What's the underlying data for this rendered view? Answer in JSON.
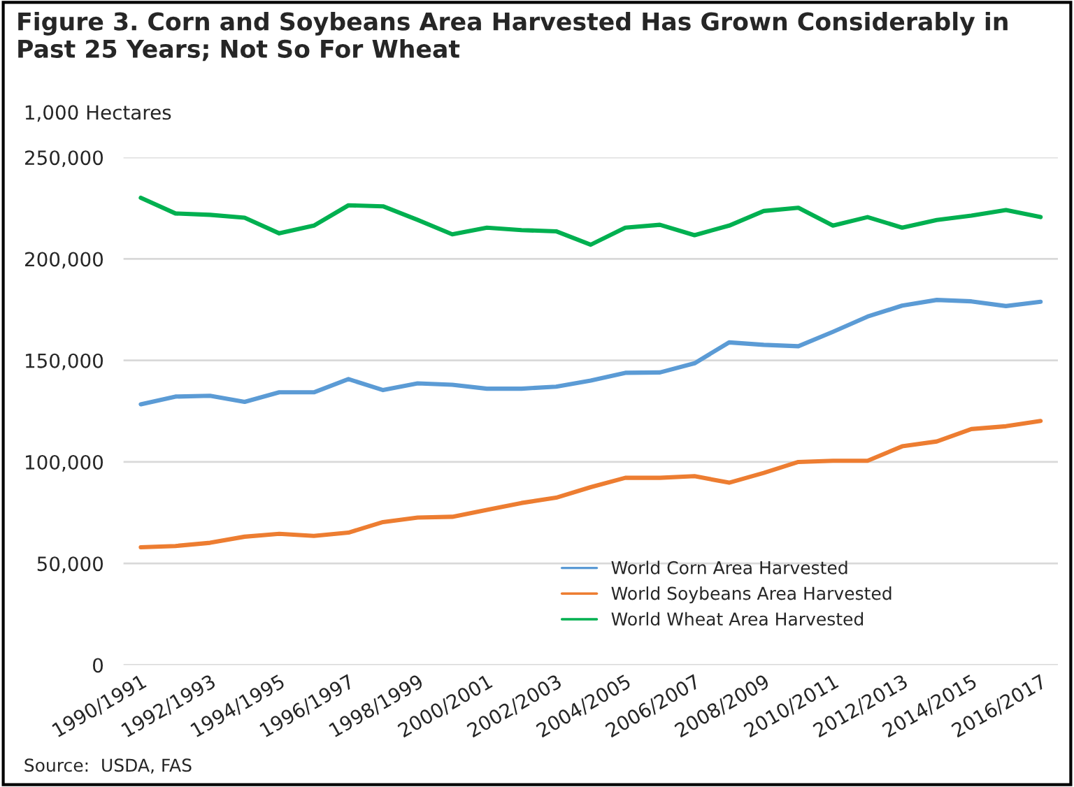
{
  "chart_data": {
    "type": "line",
    "title": "Figure 3. Corn and Soybeans Area Harvested Has Grown Considerably in Past 25 Years; Not So For Wheat",
    "ylabel": "1,000 Hectares",
    "categories": [
      "1990/1991",
      null,
      "1992/1993",
      null,
      "1994/1995",
      null,
      "1996/1997",
      null,
      "1998/1999",
      null,
      "2000/2001",
      null,
      "2002/2003",
      null,
      "2004/2005",
      null,
      "2006/2007",
      null,
      "2008/2009",
      null,
      "2010/2011",
      null,
      "2012/2013",
      null,
      "2014/2015",
      null,
      "2016/2017"
    ],
    "series": [
      {
        "name": "World Corn Area Harvested",
        "color": "#5b9bd5",
        "values": [
          128400,
          132200,
          132600,
          129600,
          134300,
          134300,
          140800,
          135400,
          138700,
          138000,
          136100,
          136100,
          137100,
          140100,
          143900,
          144100,
          148600,
          158900,
          157700,
          157000,
          164100,
          171600,
          177000,
          179800,
          179100,
          176800,
          178900
        ]
      },
      {
        "name": "World Soybeans Area Harvested",
        "color": "#ed7d31",
        "values": [
          58000,
          58600,
          60200,
          63200,
          64600,
          63600,
          65200,
          70400,
          72600,
          73000,
          76400,
          79800,
          82400,
          87600,
          92200,
          92200,
          93000,
          89800,
          94600,
          100000,
          100600,
          100600,
          107700,
          110100,
          116200,
          117600,
          120200
        ]
      },
      {
        "name": "World Wheat Area Harvested",
        "color": "#00b050",
        "values": [
          230100,
          222400,
          221700,
          220300,
          212600,
          216400,
          226400,
          225900,
          219200,
          212100,
          215400,
          214200,
          213600,
          207000,
          215400,
          216800,
          211700,
          216400,
          223600,
          225200,
          216400,
          220600,
          215400,
          219200,
          221300,
          224100,
          220600
        ]
      }
    ],
    "ylim": [
      0,
      250000
    ],
    "yticks": [
      {
        "value": 0,
        "label": "0"
      },
      {
        "value": 50000,
        "label": "50,000"
      },
      {
        "value": 100000,
        "label": "100,000"
      },
      {
        "value": 150000,
        "label": "150,000"
      },
      {
        "value": 200000,
        "label": "200,000"
      },
      {
        "value": 250000,
        "label": "250,000"
      }
    ],
    "grid": "y",
    "legend": "bottom right",
    "annotations": [
      "Source:  USDA, FAS"
    ]
  }
}
